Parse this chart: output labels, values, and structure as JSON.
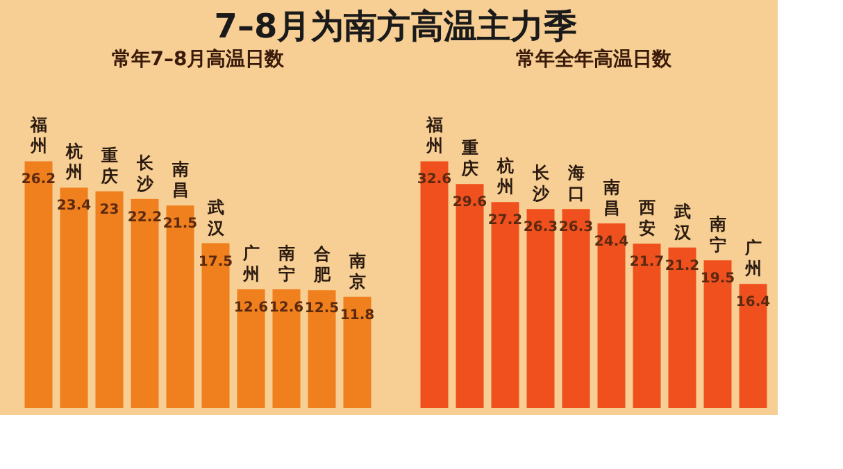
{
  "chart_data": [
    {
      "type": "bar",
      "title": "7–8月为南方高温主力季",
      "subtitle": "常年7–8月高温日数",
      "categories": [
        "福州",
        "杭州",
        "重庆",
        "长沙",
        "南昌",
        "武汉",
        "广州",
        "南宁",
        "合肥",
        "南京"
      ],
      "values": [
        26.2,
        23.4,
        23,
        22.2,
        21.5,
        17.5,
        12.6,
        12.6,
        12.5,
        11.8
      ],
      "color": "#f07f1e",
      "data_labels": true
    },
    {
      "type": "bar",
      "subtitle": "常年全年高温日数",
      "categories": [
        "福州",
        "重庆",
        "杭州",
        "长沙",
        "海口",
        "南昌",
        "西安",
        "武汉",
        "南宁",
        "广州"
      ],
      "values": [
        32.6,
        29.6,
        27.2,
        26.3,
        26.3,
        24.4,
        21.7,
        21.2,
        19.5,
        16.4
      ],
      "color": "#f0501e",
      "data_labels": true
    }
  ]
}
